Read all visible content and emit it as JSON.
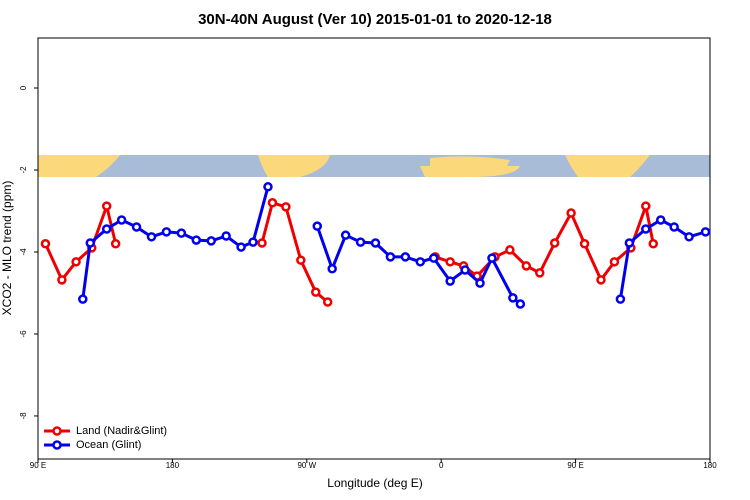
{
  "chart_data": {
    "type": "line",
    "title": "30N-40N August (Ver 10)   2015-01-01 to 2020-12-18",
    "x_label": "Longitude (deg E)",
    "y_label": "XCO2 - MLO trend (ppm)",
    "xlim": [
      90,
      540
    ],
    "ylim": [
      -9.05,
      1.22
    ],
    "xticks": [
      {
        "value": 90,
        "label": "90 E"
      },
      180,
      {
        "value": 270,
        "label": "90 W"
      },
      {
        "value": 360,
        "label": "0"
      },
      {
        "value": 450,
        "label": "90 E"
      },
      {
        "value": 540,
        "label": "180"
      }
    ],
    "yticks": [
      0,
      -2,
      -4,
      -6,
      -8
    ],
    "legend": "bottom-left",
    "series": [
      {
        "name": "Land (Nadir&Glint)",
        "color": "#ee0000",
        "x": [
          95,
          106,
          115.5,
          126,
          136,
          142,
          null,
          240,
          247,
          256,
          266,
          276,
          284,
          null,
          356,
          366,
          375,
          384,
          396,
          406,
          417,
          426,
          436,
          447,
          456,
          467,
          476,
          487,
          497,
          502
        ],
        "values": [
          -3.8,
          -4.68,
          -4.24,
          -3.9,
          -2.88,
          -3.8,
          null,
          -3.78,
          -2.8,
          -2.9,
          -4.2,
          -4.98,
          -5.22,
          null,
          -4.12,
          -4.24,
          -4.34,
          -4.59,
          -4.12,
          -3.95,
          -4.34,
          -4.51,
          -3.78,
          -3.05,
          -3.8,
          -4.68,
          -4.24,
          -3.9,
          -2.88,
          -3.8
        ]
      },
      {
        "name": "Ocean (Glint)",
        "color": "#0000ee",
        "x": [
          120,
          125,
          136,
          146,
          156,
          166,
          176,
          186,
          196,
          206,
          216,
          226,
          234,
          244,
          null,
          277,
          287,
          296,
          306,
          316,
          326,
          336,
          346,
          355,
          366,
          376,
          386,
          394,
          408,
          413,
          null,
          480,
          486,
          497,
          507,
          516,
          526,
          537
        ],
        "values": [
          -5.15,
          -3.78,
          -3.44,
          -3.22,
          -3.39,
          -3.63,
          -3.51,
          -3.54,
          -3.71,
          -3.73,
          -3.61,
          -3.88,
          -3.76,
          -2.41,
          null,
          -3.37,
          -4.41,
          -3.59,
          -3.76,
          -3.78,
          -4.12,
          -4.12,
          -4.24,
          -4.15,
          -4.71,
          -4.44,
          -4.76,
          -4.15,
          -5.12,
          -5.27,
          null,
          -5.15,
          -3.78,
          -3.44,
          -3.22,
          -3.39,
          -3.63,
          -3.51
        ]
      }
    ]
  }
}
